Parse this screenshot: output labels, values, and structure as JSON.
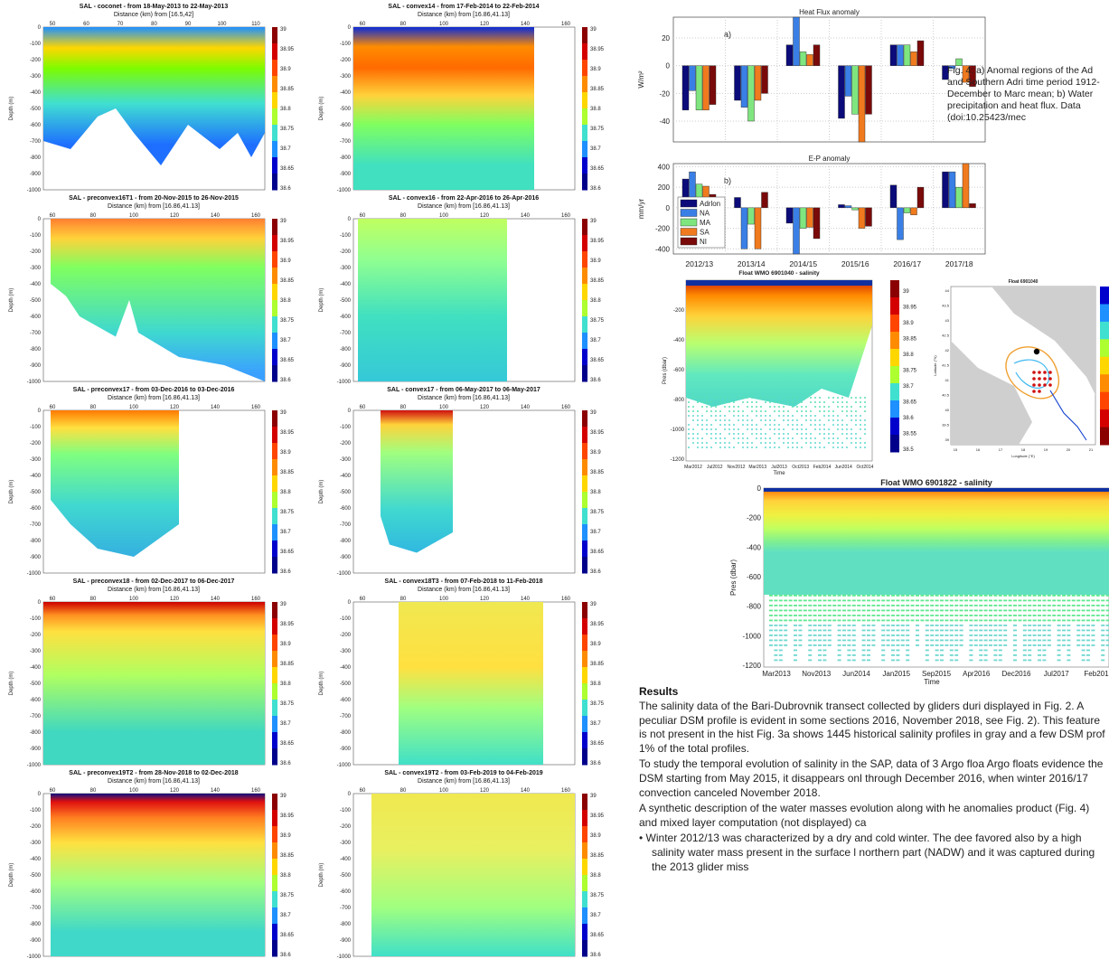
{
  "glider_panels": [
    {
      "title": "SAL - coconet - from 18-May-2013 to 22-May-2013",
      "dist": "Distance (km) from [16.5,42]",
      "xticks": [
        "50",
        "60",
        "70",
        "80",
        "90",
        "100",
        "110"
      ]
    },
    {
      "title": "SAL - convex14 - from 17-Feb-2014 to 22-Feb-2014",
      "dist": "Distance (km) from [16.86,41.13]",
      "xticks": [
        "60",
        "80",
        "100",
        "120",
        "140",
        "160"
      ]
    },
    {
      "title": "SAL - preconvex16T1 - from 20-Nov-2015 to 26-Nov-2015",
      "dist": "Distance (km) from [16.86,41.13]",
      "xticks": [
        "60",
        "80",
        "100",
        "120",
        "140",
        "160"
      ]
    },
    {
      "title": "SAL - convex16 - from 22-Apr-2016 to 26-Apr-2016",
      "dist": "Distance (km) from [16.86,41.13]",
      "xticks": [
        "60",
        "80",
        "100",
        "120",
        "140",
        "160"
      ]
    },
    {
      "title": "SAL - preconvex17 - from 03-Dec-2016 to 03-Dec-2016",
      "dist": "Distance (km) from [16.86,41.13]",
      "xticks": [
        "60",
        "80",
        "100",
        "120",
        "140",
        "160"
      ]
    },
    {
      "title": "SAL - convex17 - from 06-May-2017 to 06-May-2017",
      "dist": "Distance (km) from [16.86,41.13]",
      "xticks": [
        "60",
        "80",
        "100",
        "120",
        "140",
        "160"
      ]
    },
    {
      "title": "SAL - preconvex18 - from 02-Dec-2017 to 06-Dec-2017",
      "dist": "Distance (km) from [16.86,41.13]",
      "xticks": [
        "60",
        "80",
        "100",
        "120",
        "140",
        "160"
      ]
    },
    {
      "title": "SAL - convex18T3 - from 07-Feb-2018 to 11-Feb-2018",
      "dist": "Distance (km) from [16.86,41.13]",
      "xticks": [
        "60",
        "80",
        "100",
        "120",
        "140",
        "160"
      ]
    },
    {
      "title": "SAL - preconvex19T2 - from 28-Nov-2018 to 02-Dec-2018",
      "dist": "Distance (km) from [16.86,41.13]",
      "xticks": [
        "60",
        "80",
        "100",
        "120",
        "140",
        "160"
      ]
    },
    {
      "title": "SAL - convex19T2 - from 03-Feb-2019 to 04-Feb-2019",
      "dist": "Distance (km) from [16.86,41.13]",
      "xticks": [
        "60",
        "80",
        "100",
        "120",
        "140",
        "160"
      ]
    }
  ],
  "depth_axis": {
    "label": "Depth (m)",
    "ticks": [
      "0",
      "-100",
      "-200",
      "-300",
      "-400",
      "-500",
      "-600",
      "-700",
      "-800",
      "-900",
      "-1000"
    ]
  },
  "colorbar_ticks": [
    "39",
    "38.95",
    "38.9",
    "38.85",
    "38.8",
    "38.75",
    "38.7",
    "38.65",
    "38.6"
  ],
  "chart_data": [
    {
      "type": "bar",
      "title": "Heat Flux anomaly",
      "panel_label": "a)",
      "ylabel": "W/m²",
      "ylim": [
        -55,
        35
      ],
      "yticks": [
        "20",
        "0",
        "-20",
        "-40"
      ],
      "categories": [
        "2012/13",
        "2013/14",
        "2014/15",
        "2015/16",
        "2016/17",
        "2017/18"
      ],
      "series": [
        {
          "name": "Adrlon",
          "values": [
            -32,
            -25,
            15,
            -38,
            15,
            -10
          ]
        },
        {
          "name": "NA",
          "values": [
            -18,
            -30,
            35,
            -22,
            15,
            -2
          ]
        },
        {
          "name": "MA",
          "values": [
            -32,
            -40,
            10,
            -35,
            15,
            5
          ]
        },
        {
          "name": "SA",
          "values": [
            -32,
            -25,
            8,
            -55,
            10,
            -12
          ]
        },
        {
          "name": "NI",
          "values": [
            -28,
            -20,
            15,
            -35,
            18,
            -15
          ]
        }
      ]
    },
    {
      "type": "bar",
      "title": "E-P anomaly",
      "panel_label": "b)",
      "ylabel": "mm/yr",
      "ylim": [
        -450,
        430
      ],
      "yticks": [
        "400",
        "200",
        "0",
        "-200",
        "-400"
      ],
      "categories": [
        "2012/13",
        "2013/14",
        "2014/15",
        "2015/16",
        "2016/17",
        "2017/18"
      ],
      "series": [
        {
          "name": "Adrlon",
          "values": [
            280,
            100,
            -150,
            30,
            220,
            350
          ]
        },
        {
          "name": "NA",
          "values": [
            350,
            -400,
            -450,
            20,
            -310,
            350
          ]
        },
        {
          "name": "MA",
          "values": [
            230,
            -160,
            -200,
            -20,
            -50,
            200
          ]
        },
        {
          "name": "SA",
          "values": [
            210,
            -400,
            -190,
            -200,
            -70,
            430
          ]
        },
        {
          "name": "NI",
          "values": [
            130,
            150,
            -300,
            -180,
            200,
            40
          ]
        }
      ]
    }
  ],
  "series_colors": [
    "#0b0b7a",
    "#3a7fe6",
    "#7fe67f",
    "#f07a1e",
    "#7a0a0a"
  ],
  "float1": {
    "title": "Float WMO 6901040 - salinity",
    "ylabel": "Pres (dbar)",
    "xlabel": "Time",
    "yticks": [
      "-200",
      "-400",
      "-600",
      "-800",
      "-1000",
      "-1200"
    ],
    "xticks": [
      "Mar2012",
      "Jul2012",
      "Nov2012",
      "Mar2013",
      "Jul2013",
      "Oct2013",
      "Feb2014",
      "Jun2014",
      "Oct2014"
    ],
    "cbticks": [
      "39",
      "38.95",
      "38.9",
      "38.85",
      "38.8",
      "38.75",
      "38.7",
      "38.65",
      "38.6",
      "38.55",
      "38.5"
    ]
  },
  "map": {
    "title": "Float 6901040",
    "xlabel": "Longitude (°E)",
    "ylabel": "Latitude (°N)",
    "xticks": [
      "15",
      "16",
      "17",
      "18",
      "19",
      "20",
      "21"
    ],
    "yticks": [
      "44",
      "43.5",
      "43",
      "42.5",
      "42",
      "41.5",
      "41",
      "40.5",
      "40",
      "39.5",
      "39"
    ]
  },
  "float2": {
    "title": "Float WMO 6901822 - salinity",
    "ylabel": "Pres (dbar)",
    "xlabel": "Time",
    "yticks": [
      "0",
      "-200",
      "-400",
      "-600",
      "-800",
      "-1000",
      "-1200"
    ],
    "xticks": [
      "Mar2013",
      "Nov2013",
      "Jun2014",
      "Jan2015",
      "Sep2015",
      "Apr2016",
      "Dec2016",
      "Jul2017",
      "Feb201"
    ]
  },
  "caption": "Fig. 4: a) Anomal regions of the Ad and Southern Adri time period 1912- December to Marc mean; b) Water precipitation and heat flux. Data (doi:10.25423/mec",
  "results": {
    "title": "Results",
    "paragraphs": [
      "The salinity data of the Bari-Dubrovnik transect collected by gliders duri displayed in Fig. 2. A peculiar DSM profile is evident in some sections 2016, November 2018, see Fig. 2). This feature is not present in the hist Fig. 3a shows 1445 historical salinity profiles in gray and a few DSM prof 1% of the total profiles.",
      "To study the temporal evolution of salinity in the SAP, data of 3 Argo floa Argo floats evidence the DSM starting from May 2015, it disappears onl through December 2016, when winter 2016/17 convection canceled November 2018.",
      "A synthetic description of the water masses evolution along with he anomalies product (Fig. 4) and mixed layer computation (not displayed) ca"
    ],
    "bullet": "•  Winter 2012/13 was characterized by a dry and cold winter. The dee favored also by a high salinity water mass present in the surface l northern part (NADW) and it was captured during the 2013 glider miss"
  }
}
